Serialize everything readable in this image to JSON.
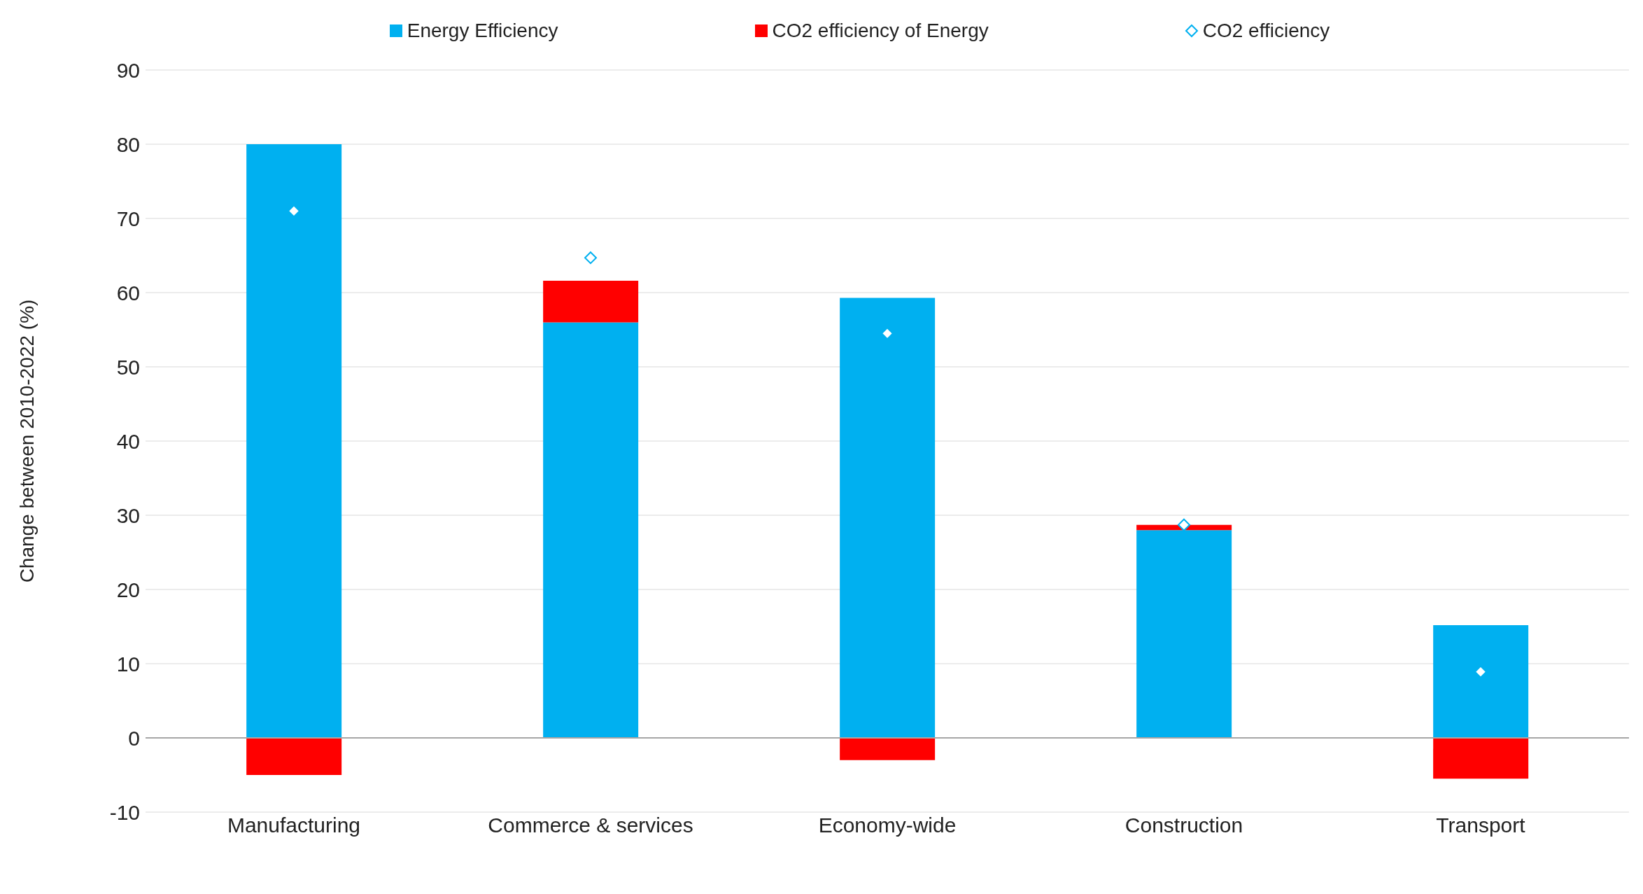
{
  "chart_data": {
    "type": "bar",
    "ylabel": "Change between 2010-2022 (%)",
    "categories": [
      "Manufacturing",
      "Commerce & services",
      "Economy-wide",
      "Construction",
      "Transport"
    ],
    "series": [
      {
        "name": "Energy Efficiency",
        "color": "#00b0f0",
        "values": [
          80,
          56,
          59.3,
          28,
          15.2
        ]
      },
      {
        "name": "CO2 efficiency of Energy",
        "color": "#ff0000",
        "values": [
          -5,
          5.6,
          -3,
          0.7,
          -5.5
        ]
      },
      {
        "name": "CO2 efficiency",
        "type": "scatter",
        "color": "#00b0f0",
        "marker": "diamond",
        "values": [
          71,
          64.7,
          54.5,
          28.7,
          8.9
        ]
      }
    ],
    "stacked": true,
    "ylim": [
      -10,
      90
    ],
    "yticks": [
      -10,
      0,
      10,
      20,
      30,
      40,
      50,
      60,
      70,
      80,
      90
    ],
    "grid": "y",
    "legend": "top"
  }
}
